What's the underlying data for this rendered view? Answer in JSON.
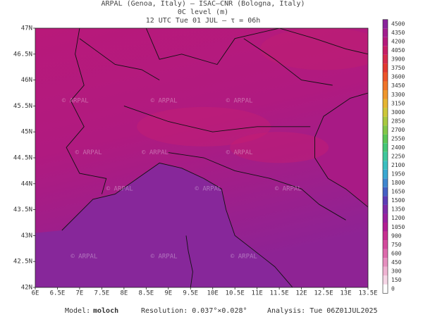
{
  "header": {
    "line1": "ARPAL (Genoa, Italy)  –  ISAC–CNR (Bologna, Italy)",
    "line2": "0C level (m)",
    "line3": "12 UTC Tue 01 JUL  –  τ = 06h"
  },
  "map": {
    "x_labels": [
      "6E",
      "6.5E",
      "7E",
      "7.5E",
      "8E",
      "8.5E",
      "9E",
      "9.5E",
      "10E",
      "10.5E",
      "11E",
      "11.5E",
      "12E",
      "12.5E",
      "13E",
      "13.5E"
    ],
    "y_labels": [
      "42N",
      "42.5N",
      "43N",
      "43.5N",
      "44N",
      "44.5N",
      "45N",
      "45.5N",
      "46N",
      "46.5N",
      "47N"
    ],
    "watermark": "© ARPAL"
  },
  "colorbar": {
    "labels": [
      "0",
      "150",
      "300",
      "450",
      "600",
      "750",
      "900",
      "1050",
      "1200",
      "1350",
      "1500",
      "1650",
      "1800",
      "1950",
      "2100",
      "2250",
      "2400",
      "2550",
      "2700",
      "2850",
      "3000",
      "3150",
      "3300",
      "3450",
      "3600",
      "3750",
      "3900",
      "4050",
      "4200",
      "4350",
      "4500"
    ],
    "colors": [
      "#ffffff",
      "#f6d6e6",
      "#efb3d2",
      "#e68fbf",
      "#dd6aac",
      "#d24a9c",
      "#c62f90",
      "#b21d92",
      "#9a1f9e",
      "#7f2aa8",
      "#5d3bb6",
      "#4560c4",
      "#3f86cf",
      "#3aa8d2",
      "#3bbfc0",
      "#3fc79c",
      "#45c777",
      "#5cc655",
      "#83c747",
      "#a9c93f",
      "#cdc739",
      "#e6b531",
      "#ef962c",
      "#f07429",
      "#ec5429",
      "#e2392f",
      "#d62c4c",
      "#c71e66",
      "#b5197c",
      "#a21d8e",
      "#8a239c"
    ]
  },
  "footer": {
    "model_label": "Model:",
    "model": "moloch",
    "resolution": "Resolution: 0.037°×0.028°",
    "analysis": "Analysis: Tue 06Z01JUL2025"
  }
}
